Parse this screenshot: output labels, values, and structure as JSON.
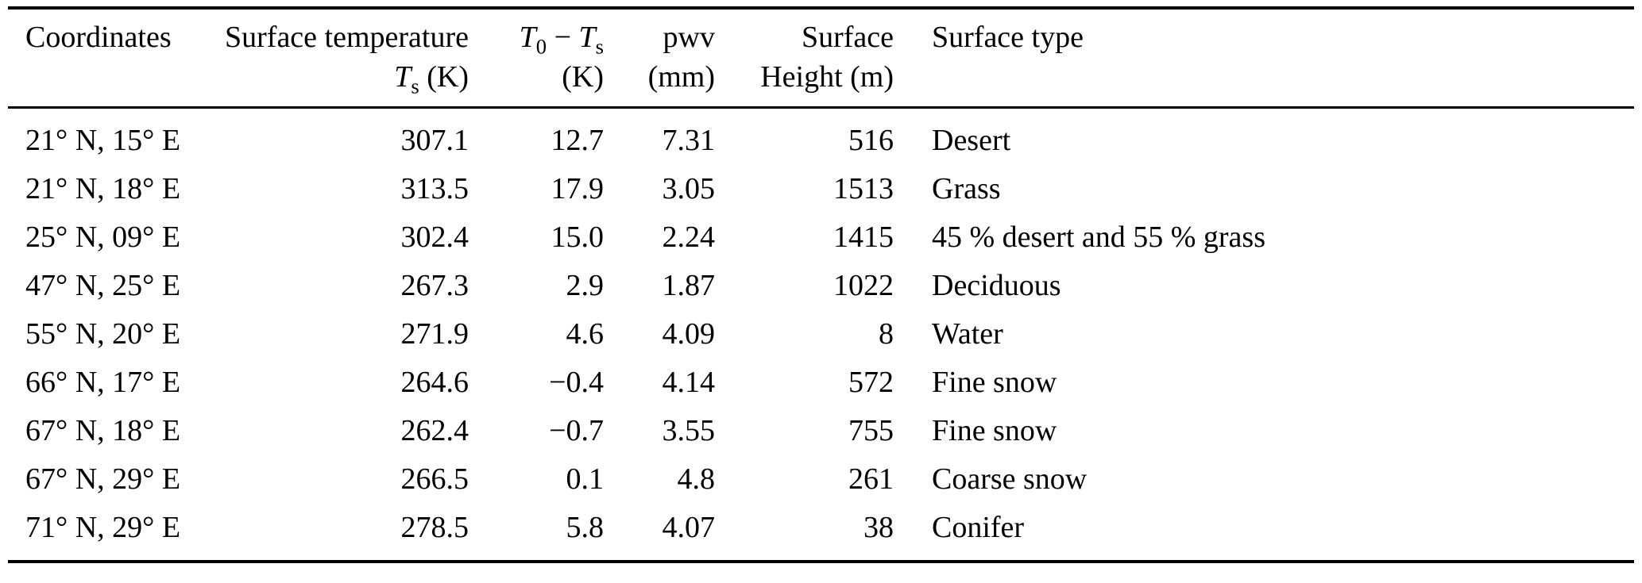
{
  "table": {
    "header": {
      "coordinates": {
        "line1": "Coordinates"
      },
      "surface_temperature": {
        "line1": "Surface temperature",
        "symbol": "T",
        "subscript": "s",
        "unit": " (K)"
      },
      "t0_minus_ts": {
        "symbol1": "T",
        "subscript1": "0",
        "operator": " − ",
        "symbol2": "T",
        "subscript2": "s",
        "line2": "(K)"
      },
      "pwv": {
        "line1": "pwv",
        "line2": "(mm)"
      },
      "surface_height": {
        "line1": "Surface",
        "line2": "Height (m)"
      },
      "surface_type": {
        "line1": "Surface type"
      }
    },
    "rows": [
      {
        "coordinates": "21° N, 15° E",
        "surface_temperature": "307.1",
        "t0_minus_ts": "12.7",
        "pwv": "7.31",
        "surface_height": "516",
        "surface_type": "Desert"
      },
      {
        "coordinates": "21° N, 18° E",
        "surface_temperature": "313.5",
        "t0_minus_ts": "17.9",
        "pwv": "3.05",
        "surface_height": "1513",
        "surface_type": "Grass"
      },
      {
        "coordinates": "25° N, 09° E",
        "surface_temperature": "302.4",
        "t0_minus_ts": "15.0",
        "pwv": "2.24",
        "surface_height": "1415",
        "surface_type": "45 % desert and 55 % grass"
      },
      {
        "coordinates": "47° N, 25° E",
        "surface_temperature": "267.3",
        "t0_minus_ts": "2.9",
        "pwv": "1.87",
        "surface_height": "1022",
        "surface_type": "Deciduous"
      },
      {
        "coordinates": "55° N, 20° E",
        "surface_temperature": "271.9",
        "t0_minus_ts": "4.6",
        "pwv": "4.09",
        "surface_height": "8",
        "surface_type": "Water"
      },
      {
        "coordinates": "66° N, 17° E",
        "surface_temperature": "264.6",
        "t0_minus_ts": "−0.4",
        "pwv": "4.14",
        "surface_height": "572",
        "surface_type": "Fine snow"
      },
      {
        "coordinates": "67° N, 18° E",
        "surface_temperature": "262.4",
        "t0_minus_ts": "−0.7",
        "pwv": "3.55",
        "surface_height": "755",
        "surface_type": "Fine snow"
      },
      {
        "coordinates": "67° N, 29° E",
        "surface_temperature": "266.5",
        "t0_minus_ts": "0.1",
        "pwv": "4.8",
        "surface_height": "261",
        "surface_type": "Coarse snow"
      },
      {
        "coordinates": "71° N, 29° E",
        "surface_temperature": "278.5",
        "t0_minus_ts": "5.8",
        "pwv": "4.07",
        "surface_height": "38",
        "surface_type": "Conifer"
      }
    ]
  }
}
